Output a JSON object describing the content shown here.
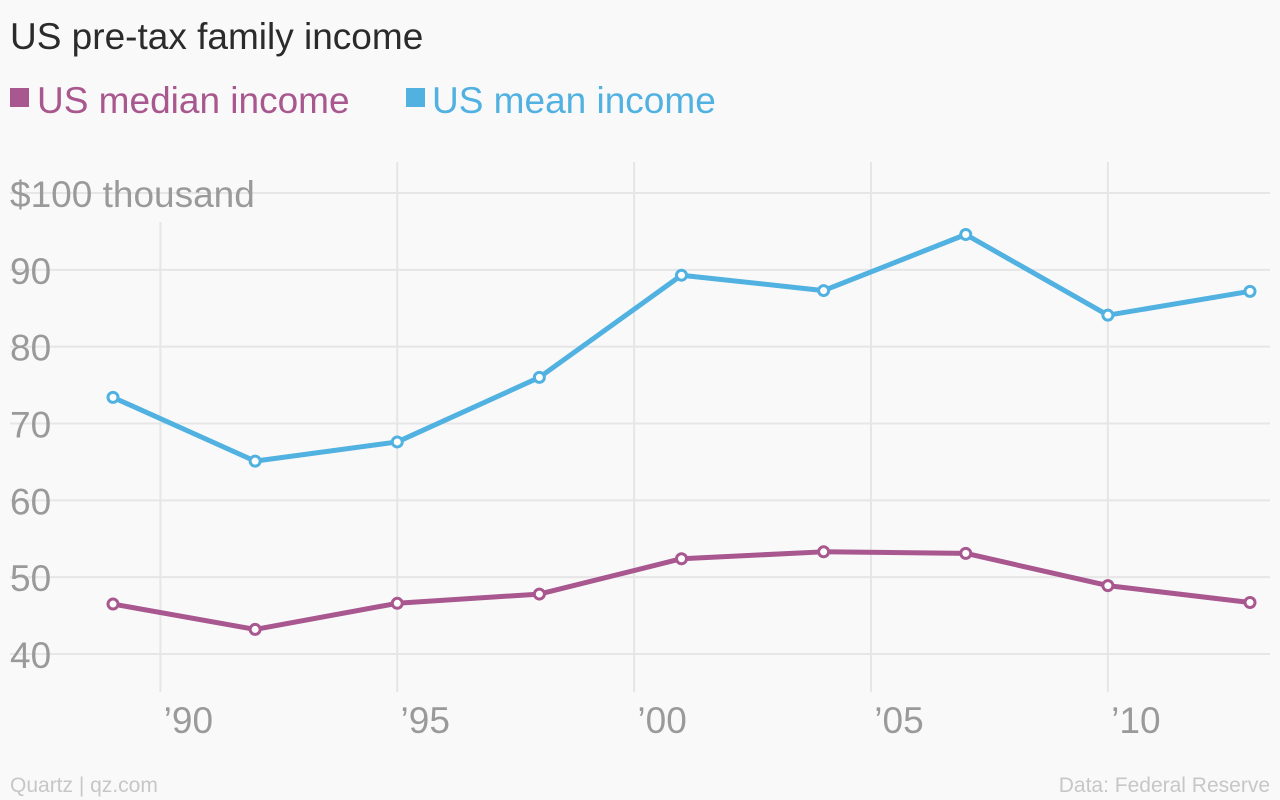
{
  "chart_data": {
    "type": "line",
    "title": "US pre-tax family income",
    "x": [
      1989,
      1992,
      1995,
      1998,
      2001,
      2004,
      2007,
      2010,
      2013
    ],
    "series": [
      {
        "name": "US median income",
        "color": "#a8578f",
        "values": [
          46.5,
          43.2,
          46.6,
          47.8,
          52.4,
          53.3,
          53.1,
          48.9,
          46.7
        ]
      },
      {
        "name": "US mean income",
        "color": "#51b1e0",
        "values": [
          73.4,
          65.1,
          67.6,
          76.0,
          89.3,
          87.3,
          94.6,
          84.1,
          87.2
        ]
      }
    ],
    "xticks": [
      {
        "value": 1990,
        "label": "’90"
      },
      {
        "value": 1995,
        "label": "’95"
      },
      {
        "value": 2000,
        "label": "’00"
      },
      {
        "value": 2005,
        "label": "’05"
      },
      {
        "value": 2010,
        "label": "’10"
      }
    ],
    "yticks": [
      {
        "value": 100,
        "label": "$100 thousand"
      },
      {
        "value": 90,
        "label": "90"
      },
      {
        "value": 80,
        "label": "80"
      },
      {
        "value": 70,
        "label": "70"
      },
      {
        "value": 60,
        "label": "60"
      },
      {
        "value": 50,
        "label": "50"
      },
      {
        "value": 40,
        "label": "40"
      }
    ],
    "xlim": [
      1989,
      2013
    ],
    "ylim": [
      40,
      100
    ],
    "grid": true,
    "legend": "top-left",
    "source": "Data: Federal Reserve",
    "credit": "Quartz | qz.com"
  }
}
